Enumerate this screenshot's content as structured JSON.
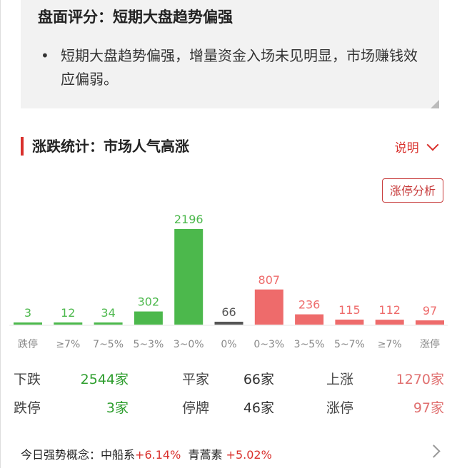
{
  "summary": {
    "title": "盘面评分：短期大盘趋势偏强",
    "bullet": "短期大盘趋势偏强，增量资金入场未见明显，市场赚钱效应偏弱。"
  },
  "section": {
    "title": "涨跌统计：市场人气高涨",
    "explain": "说明",
    "explain_icon": "chevron-down-icon",
    "button": "涨停分析"
  },
  "colors": {
    "down": "#4cb84c",
    "flat": "#555555",
    "up": "#ee6b6b",
    "accent": "#d9302c"
  },
  "chart_data": {
    "type": "bar",
    "categories": [
      "跌停",
      "≥7%",
      "7~5%",
      "5~3%",
      "3~0%",
      "0%",
      "0~3%",
      "3~5%",
      "5~7%",
      "≥7%",
      "涨停"
    ],
    "values": [
      3,
      12,
      34,
      302,
      2196,
      66,
      807,
      236,
      115,
      112,
      97
    ],
    "colors": [
      "down",
      "down",
      "down",
      "down",
      "down",
      "flat",
      "up",
      "up",
      "up",
      "up",
      "up"
    ]
  },
  "stats": [
    [
      {
        "label": "下跌",
        "value": "2544家",
        "tone": "down"
      },
      {
        "label": "平家",
        "value": "66家",
        "tone": "flat"
      },
      {
        "label": "上涨",
        "value": "1270家",
        "tone": "up"
      }
    ],
    [
      {
        "label": "跌停",
        "value": "3家",
        "tone": "down"
      },
      {
        "label": "停牌",
        "value": "46家",
        "tone": "flat"
      },
      {
        "label": "涨停",
        "value": "97家",
        "tone": "up"
      }
    ]
  ],
  "concepts": {
    "label": "今日强势概念：",
    "items": [
      {
        "name": "中船系",
        "change": "+6.14%"
      },
      {
        "name": "青蒿素",
        "change": "+5.02%"
      }
    ]
  }
}
